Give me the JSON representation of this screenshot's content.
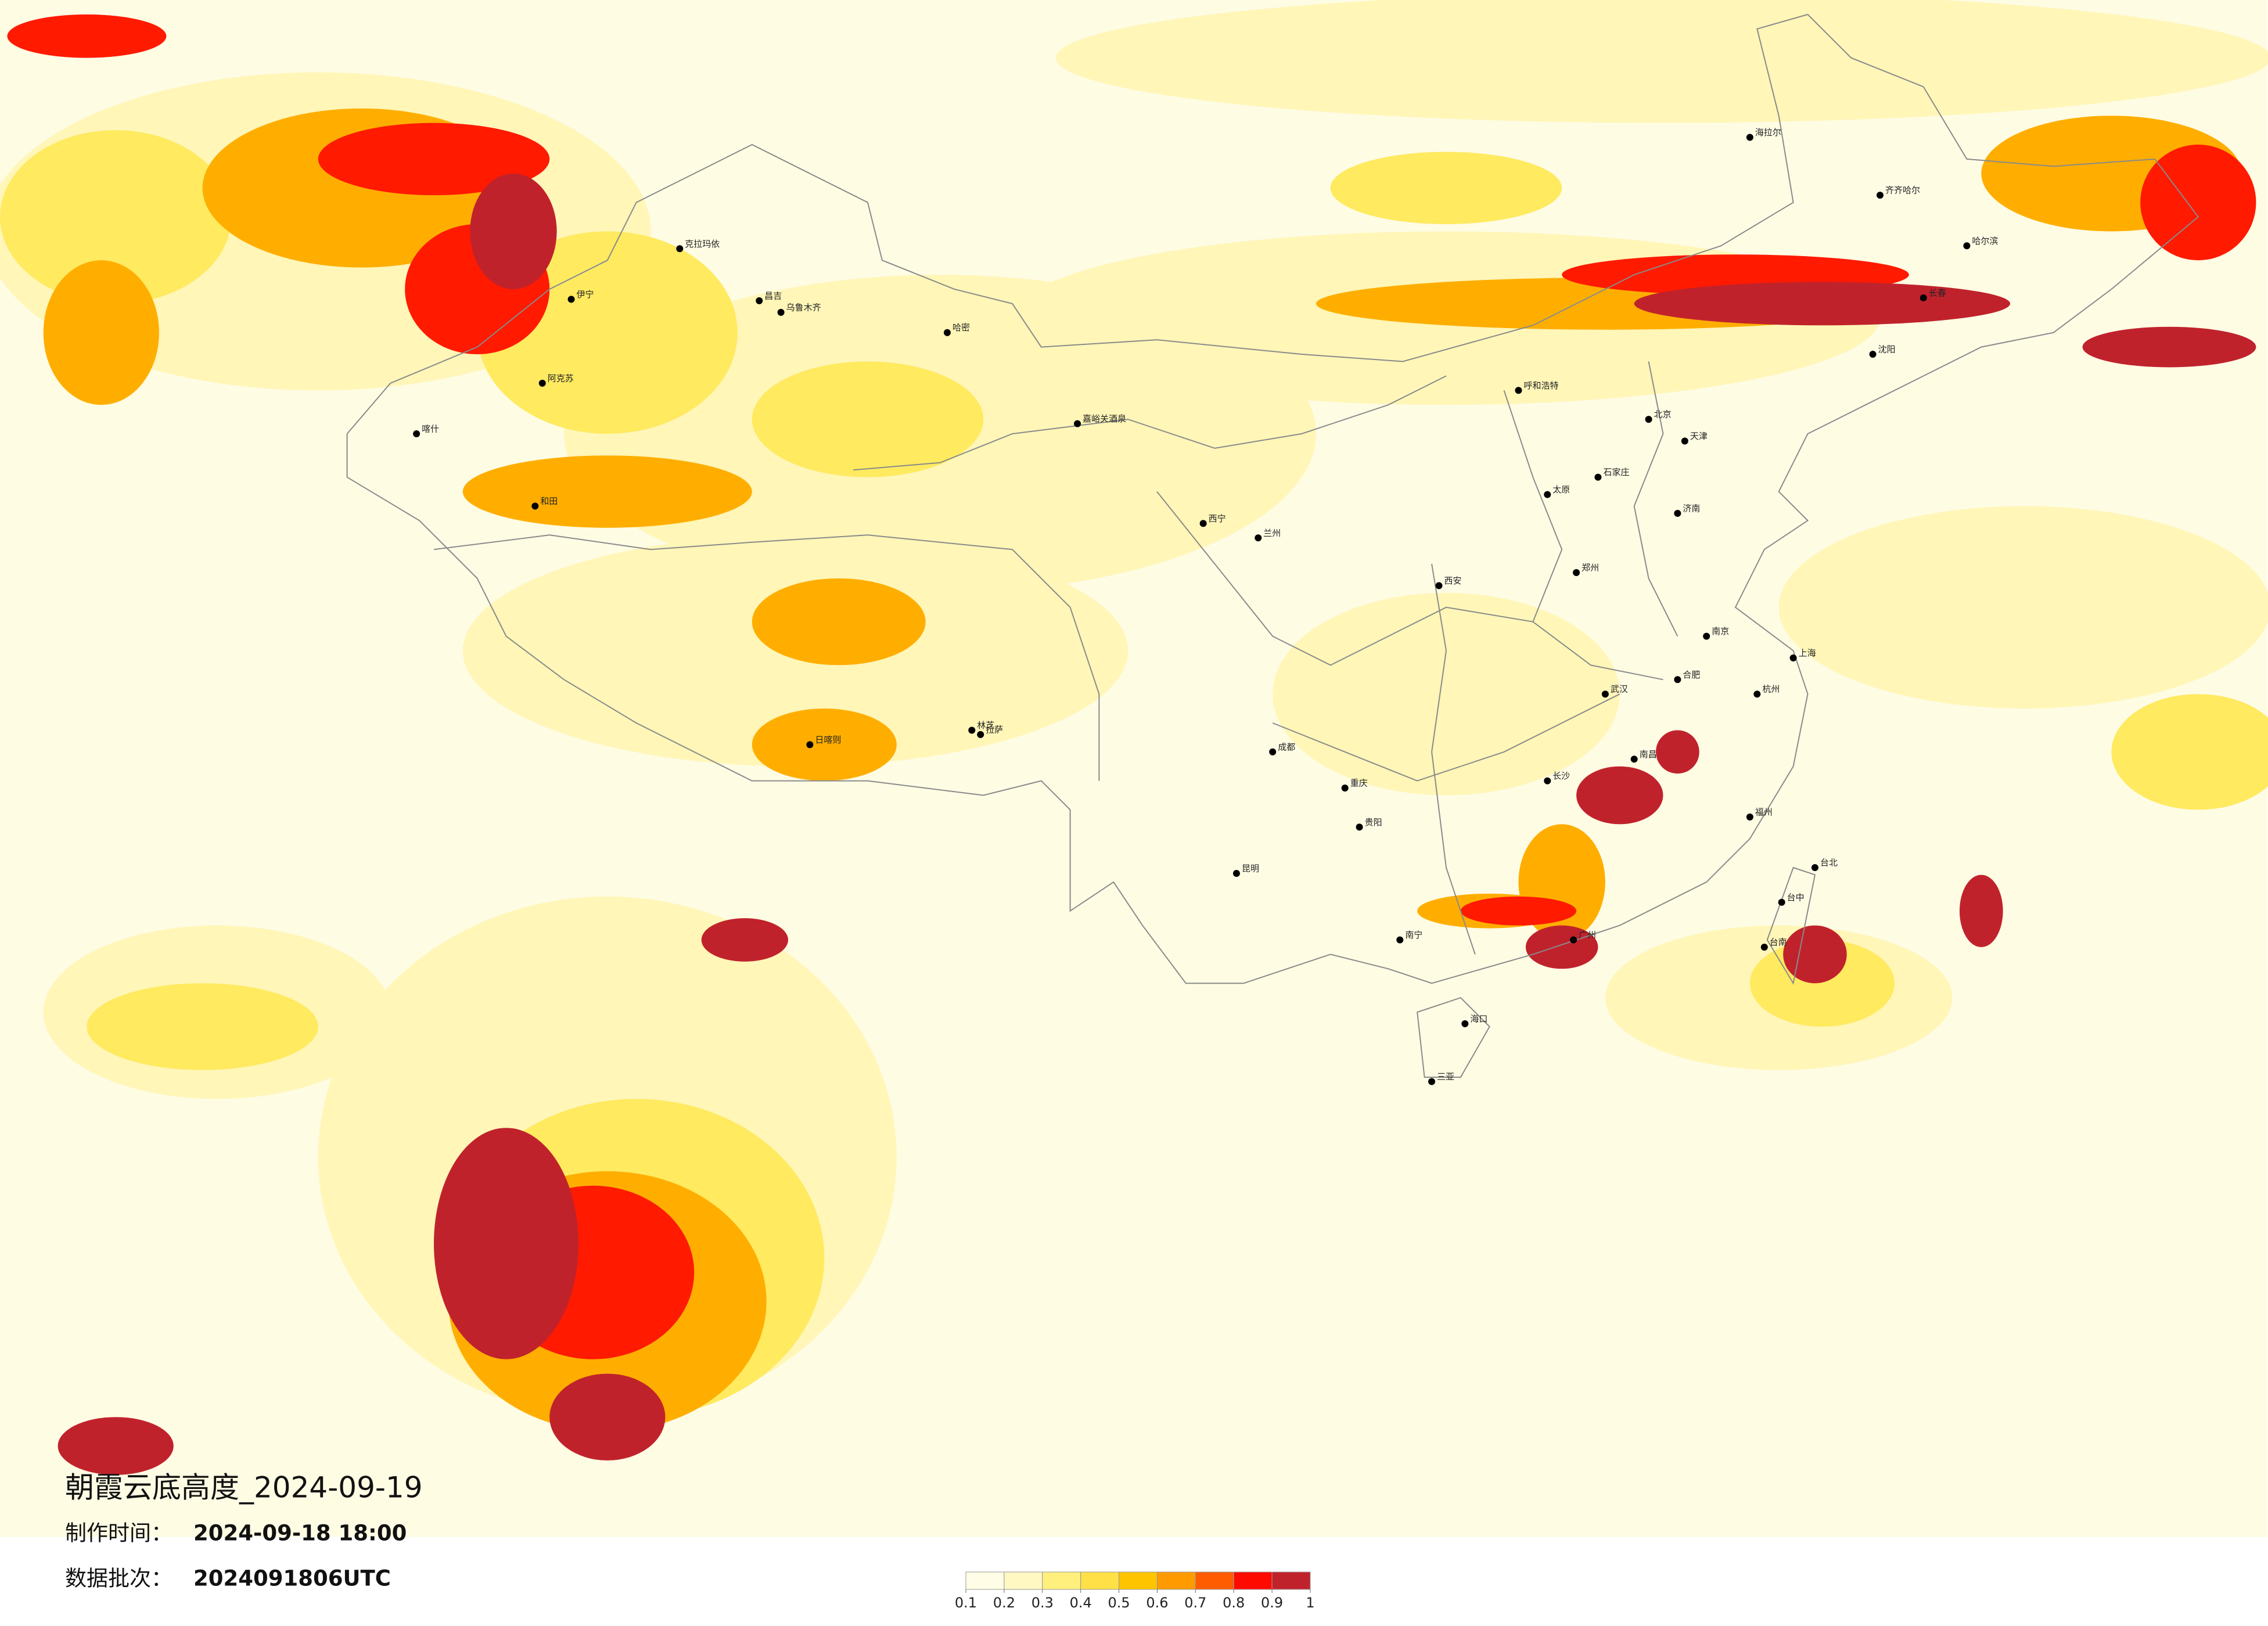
{
  "header": {
    "title": "朝霞云底高度_2024-09-19",
    "made_label": "制作时间：",
    "made_value": "2024-09-18 18:00",
    "batch_label": "数据批次：",
    "batch_value": "2024091806UTC"
  },
  "legend": {
    "colors": [
      "#fffde6",
      "#fff8c2",
      "#fff07e",
      "#ffe046",
      "#ffc400",
      "#ff9a00",
      "#ff5c00",
      "#ff0a00",
      "#c0222c"
    ],
    "ticks": [
      0.1,
      0.2,
      0.3,
      0.4,
      0.5,
      0.6,
      0.7,
      0.8,
      0.9,
      1
    ]
  },
  "cities": [
    "克拉玛依",
    "伊宁",
    "昌吉",
    "乌鲁木齐",
    "哈密",
    "阿克苏",
    "喀什",
    "和田",
    "嘉峪关酒泉",
    "西宁",
    "兰州",
    "拉萨",
    "日喀则",
    "林芝",
    "成都",
    "重庆",
    "昆明",
    "贵阳",
    "南宁",
    "广州",
    "海口",
    "三亚",
    "长沙",
    "武汉",
    "南京",
    "上海",
    "北京",
    "天津",
    "石家庄",
    "呼和浩特",
    "太原",
    "郑州",
    "西安",
    "济南",
    "沈阳",
    "长春",
    "哈尔滨",
    "海拉尔",
    "齐齐哈尔",
    "福州",
    "台北",
    "台中",
    "台南",
    "南昌",
    "杭州",
    "合肥"
  ]
}
